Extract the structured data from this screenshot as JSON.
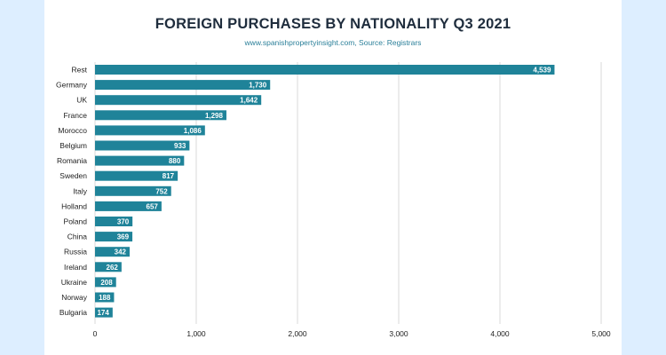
{
  "chart_data": {
    "type": "bar",
    "orientation": "horizontal",
    "title": "FOREIGN PURCHASES BY NATIONALITY Q3 2021",
    "subtitle": "www.spanishpropertyinsight.com, Source: Registrars",
    "categories": [
      "Rest",
      "Germany",
      "UK",
      "France",
      "Morocco",
      "Belgium",
      "Romania",
      "Sweden",
      "Italy",
      "Holland",
      "Poland",
      "China",
      "Russia",
      "Ireland",
      "Ukraine",
      "Norway",
      "Bulgaria"
    ],
    "values": [
      4539,
      1730,
      1642,
      1298,
      1086,
      933,
      880,
      817,
      752,
      657,
      370,
      369,
      342,
      262,
      208,
      188,
      174
    ],
    "value_labels": [
      "4,539",
      "1,730",
      "1,642",
      "1,298",
      "1,086",
      "933",
      "880",
      "817",
      "752",
      "657",
      "370",
      "369",
      "342",
      "262",
      "208",
      "188",
      "174"
    ],
    "xlim": [
      0,
      5000
    ],
    "xticks": [
      0,
      1000,
      2000,
      3000,
      4000,
      5000
    ],
    "xtick_labels": [
      "0",
      "1,000",
      "2,000",
      "3,000",
      "4,000",
      "5,000"
    ],
    "grid": "vertical",
    "bar_color": "#1f8399",
    "legend": "none"
  }
}
